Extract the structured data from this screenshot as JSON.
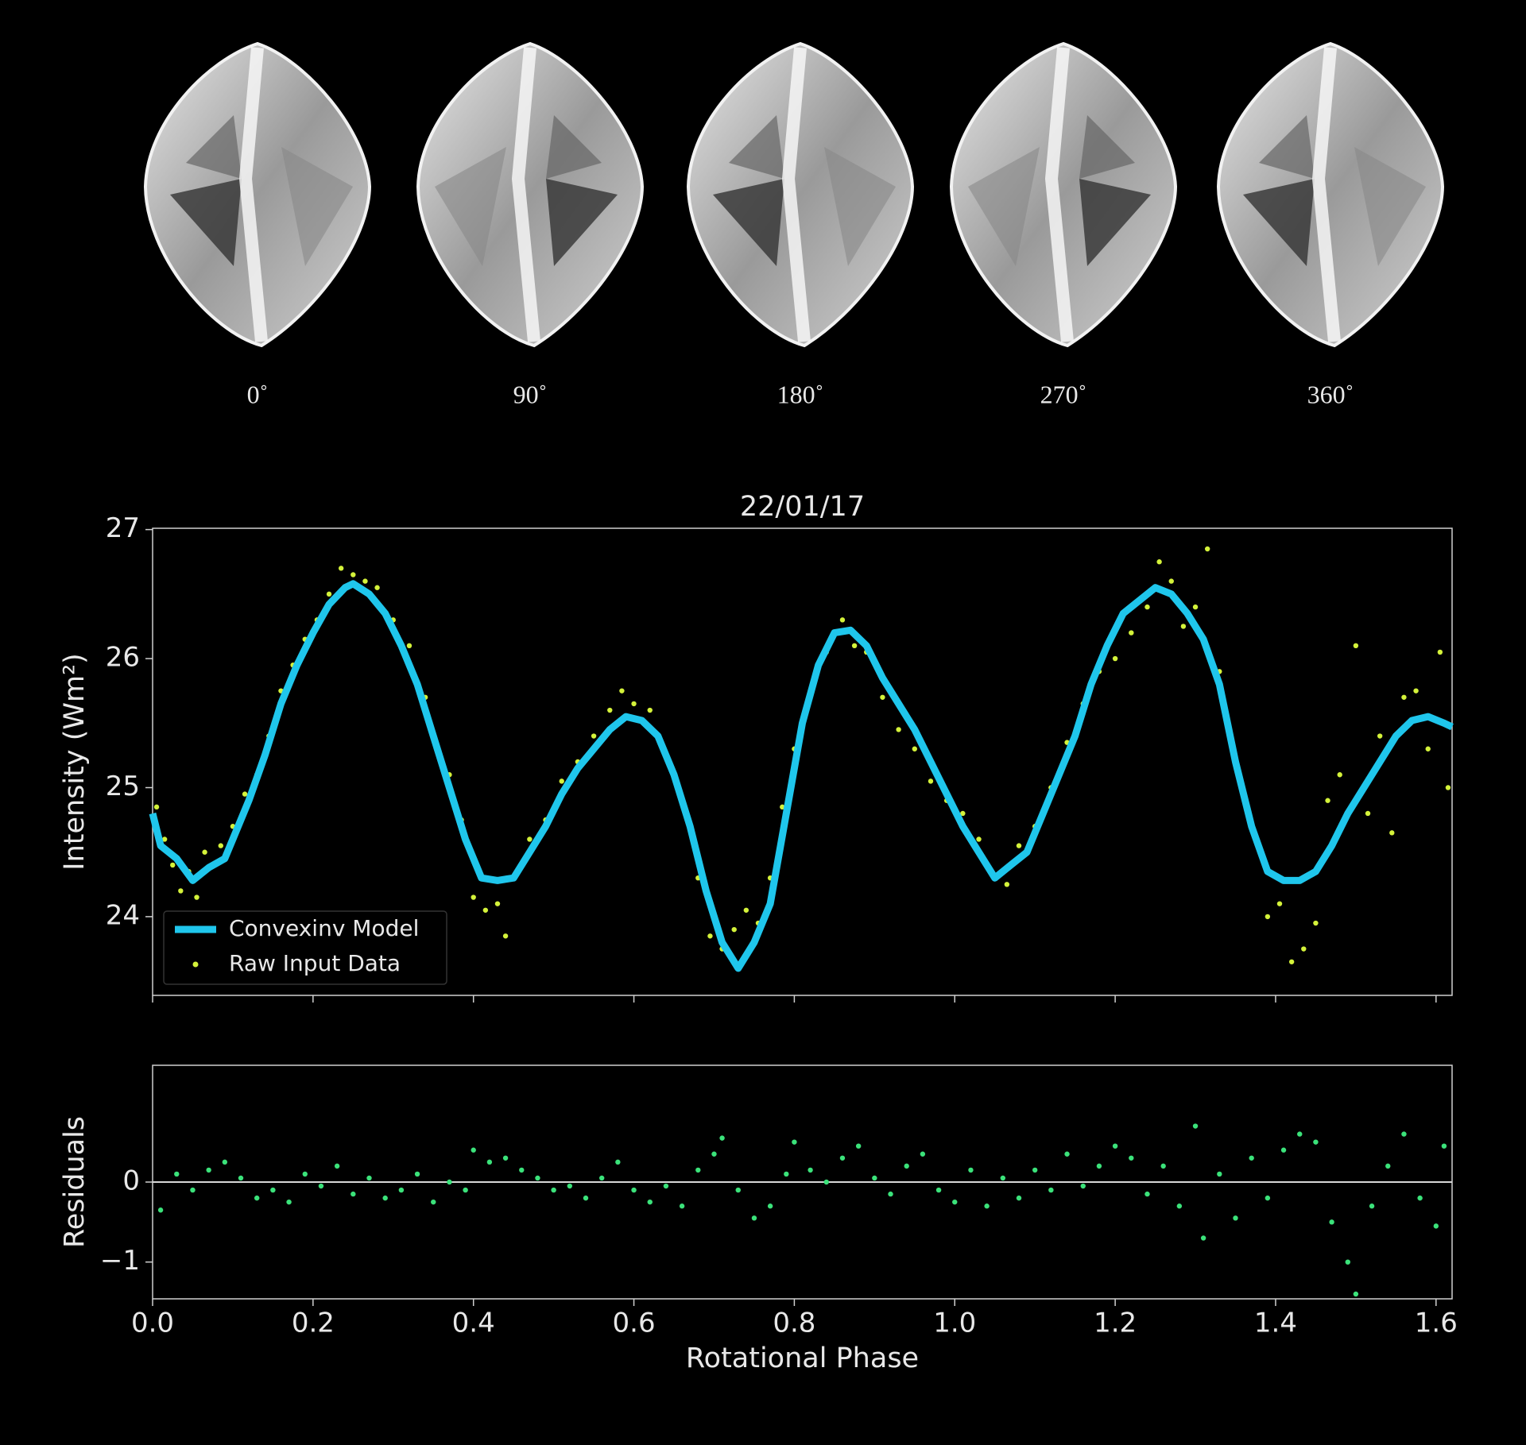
{
  "views": {
    "labels": [
      "0˚",
      "90˚",
      "180˚",
      "270˚",
      "360˚"
    ]
  },
  "chart_data": [
    {
      "type": "line",
      "title": "22/01/17",
      "ylabel": "Intensity (Wm²)",
      "xlim": [
        0,
        1.62
      ],
      "ylim": [
        23.39,
        27.01
      ],
      "yticks": [
        24,
        25,
        26,
        27
      ],
      "legend": "lower left",
      "series": [
        {
          "name": "Convexinv Model",
          "color": "#1fc6ec",
          "style": "line",
          "x": [
            0,
            0.01,
            0.03,
            0.05,
            0.07,
            0.09,
            0.1,
            0.12,
            0.14,
            0.16,
            0.18,
            0.2,
            0.22,
            0.24,
            0.25,
            0.27,
            0.29,
            0.31,
            0.33,
            0.35,
            0.37,
            0.39,
            0.41,
            0.43,
            0.45,
            0.47,
            0.49,
            0.51,
            0.53,
            0.55,
            0.57,
            0.59,
            0.61,
            0.63,
            0.65,
            0.67,
            0.69,
            0.71,
            0.73,
            0.75,
            0.77,
            0.79,
            0.81,
            0.83,
            0.85,
            0.87,
            0.89,
            0.91,
            0.93,
            0.95,
            0.97,
            0.99,
            1.01,
            1.03,
            1.05,
            1.07,
            1.09,
            1.11,
            1.13,
            1.15,
            1.17,
            1.19,
            1.21,
            1.23,
            1.25,
            1.27,
            1.29,
            1.31,
            1.33,
            1.35,
            1.37,
            1.39,
            1.41,
            1.43,
            1.45,
            1.47,
            1.49,
            1.51,
            1.53,
            1.55,
            1.57,
            1.59,
            1.61,
            1.62
          ],
          "values": [
            24.8,
            24.55,
            24.45,
            24.28,
            24.38,
            24.45,
            24.6,
            24.9,
            25.25,
            25.65,
            25.95,
            26.2,
            26.42,
            26.55,
            26.58,
            26.5,
            26.35,
            26.1,
            25.8,
            25.4,
            25.0,
            24.6,
            24.3,
            24.28,
            24.3,
            24.5,
            24.7,
            24.95,
            25.15,
            25.3,
            25.45,
            25.55,
            25.52,
            25.4,
            25.1,
            24.7,
            24.2,
            23.8,
            23.6,
            23.8,
            24.1,
            24.8,
            25.5,
            25.95,
            26.2,
            26.22,
            26.1,
            25.85,
            25.65,
            25.45,
            25.2,
            24.95,
            24.7,
            24.5,
            24.3,
            24.4,
            24.5,
            24.8,
            25.1,
            25.4,
            25.8,
            26.1,
            26.35,
            26.45,
            26.55,
            26.5,
            26.35,
            26.15,
            25.8,
            25.2,
            24.7,
            24.35,
            24.28,
            24.28,
            24.35,
            24.55,
            24.8,
            25.0,
            25.2,
            25.4,
            25.52,
            25.55,
            25.5,
            25.47
          ]
        },
        {
          "name": "Raw Input Data",
          "color": "#d4f23a",
          "style": "points",
          "x": [
            0.005,
            0.015,
            0.025,
            0.035,
            0.045,
            0.055,
            0.065,
            0.085,
            0.1,
            0.115,
            0.13,
            0.145,
            0.16,
            0.175,
            0.19,
            0.205,
            0.22,
            0.235,
            0.25,
            0.265,
            0.28,
            0.3,
            0.32,
            0.34,
            0.355,
            0.37,
            0.385,
            0.4,
            0.415,
            0.43,
            0.44,
            0.455,
            0.47,
            0.49,
            0.51,
            0.53,
            0.55,
            0.57,
            0.585,
            0.6,
            0.62,
            0.64,
            0.66,
            0.68,
            0.695,
            0.71,
            0.725,
            0.74,
            0.755,
            0.77,
            0.785,
            0.8,
            0.82,
            0.84,
            0.86,
            0.875,
            0.89,
            0.91,
            0.93,
            0.95,
            0.97,
            0.99,
            1.01,
            1.03,
            1.05,
            1.065,
            1.08,
            1.1,
            1.12,
            1.14,
            1.16,
            1.18,
            1.2,
            1.22,
            1.24,
            1.255,
            1.27,
            1.285,
            1.3,
            1.315,
            1.33,
            1.345,
            1.36,
            1.375,
            1.39,
            1.405,
            1.42,
            1.435,
            1.45,
            1.465,
            1.48,
            1.5,
            1.515,
            1.53,
            1.545,
            1.56,
            1.575,
            1.59,
            1.605,
            1.615
          ],
          "values": [
            24.85,
            24.6,
            24.4,
            24.2,
            24.35,
            24.15,
            24.5,
            24.55,
            24.7,
            24.95,
            25.1,
            25.4,
            25.75,
            25.95,
            26.15,
            26.3,
            26.5,
            26.7,
            26.65,
            26.6,
            26.55,
            26.3,
            26.1,
            25.7,
            25.3,
            25.1,
            24.75,
            24.15,
            24.05,
            24.1,
            23.85,
            24.35,
            24.6,
            24.75,
            25.05,
            25.2,
            25.4,
            25.6,
            25.75,
            25.65,
            25.6,
            25.25,
            24.9,
            24.3,
            23.85,
            23.75,
            23.9,
            24.05,
            23.95,
            24.3,
            24.85,
            25.3,
            25.75,
            26.05,
            26.3,
            26.1,
            26.05,
            25.7,
            25.45,
            25.3,
            25.05,
            24.9,
            24.8,
            24.6,
            24.3,
            24.25,
            24.55,
            24.7,
            25.0,
            25.35,
            25.65,
            25.9,
            26.0,
            26.2,
            26.4,
            26.75,
            26.6,
            26.25,
            26.4,
            26.85,
            25.9,
            25.35,
            24.95,
            24.6,
            24.0,
            24.1,
            23.65,
            23.75,
            23.95,
            24.9,
            25.1,
            26.1,
            24.8,
            25.4,
            24.65,
            25.7,
            25.75,
            25.3,
            26.05,
            25.0
          ]
        }
      ]
    },
    {
      "type": "scatter",
      "ylabel": "Residuals",
      "xlabel": "Rotational Phase",
      "color": "#3be27a",
      "xlim": [
        0,
        1.62
      ],
      "ylim": [
        -1.46,
        1.46
      ],
      "reference_line": 0,
      "xticks": [
        {
          "value": 0,
          "label": "0.0"
        },
        {
          "value": 0.2,
          "label": "0.2"
        },
        {
          "value": 0.4,
          "label": "0.4"
        },
        {
          "value": 0.6,
          "label": "0.6"
        },
        {
          "value": 0.8,
          "label": "0.8"
        },
        {
          "value": 1,
          "label": "1.0"
        },
        {
          "value": 1.2,
          "label": "1.2"
        },
        {
          "value": 1.4,
          "label": "1.4"
        },
        {
          "value": 1.6,
          "label": "1.6"
        }
      ],
      "yticks": [
        {
          "value": -1,
          "label": "−1"
        },
        0
      ],
      "x": [
        0.01,
        0.03,
        0.05,
        0.07,
        0.09,
        0.11,
        0.13,
        0.15,
        0.17,
        0.19,
        0.21,
        0.23,
        0.25,
        0.27,
        0.29,
        0.31,
        0.33,
        0.35,
        0.37,
        0.39,
        0.4,
        0.42,
        0.44,
        0.46,
        0.48,
        0.5,
        0.52,
        0.54,
        0.56,
        0.58,
        0.6,
        0.62,
        0.64,
        0.66,
        0.68,
        0.7,
        0.71,
        0.73,
        0.75,
        0.77,
        0.79,
        0.8,
        0.82,
        0.84,
        0.86,
        0.88,
        0.9,
        0.92,
        0.94,
        0.96,
        0.98,
        1.0,
        1.02,
        1.04,
        1.06,
        1.08,
        1.1,
        1.12,
        1.14,
        1.16,
        1.18,
        1.2,
        1.22,
        1.24,
        1.26,
        1.28,
        1.3,
        1.31,
        1.33,
        1.35,
        1.37,
        1.39,
        1.41,
        1.43,
        1.45,
        1.47,
        1.49,
        1.5,
        1.52,
        1.54,
        1.56,
        1.58,
        1.6,
        1.61
      ],
      "values": [
        -0.35,
        0.1,
        -0.1,
        0.15,
        0.25,
        0.05,
        -0.2,
        -0.1,
        -0.25,
        0.1,
        -0.05,
        0.2,
        -0.15,
        0.05,
        -0.2,
        -0.1,
        0.1,
        -0.25,
        0.0,
        -0.1,
        0.4,
        0.25,
        0.3,
        0.15,
        0.05,
        -0.1,
        -0.05,
        -0.2,
        0.05,
        0.25,
        -0.1,
        -0.25,
        -0.05,
        -0.3,
        0.15,
        0.35,
        0.55,
        -0.1,
        -0.45,
        -0.3,
        0.1,
        0.5,
        0.15,
        0.0,
        0.3,
        0.45,
        0.05,
        -0.15,
        0.2,
        0.35,
        -0.1,
        -0.25,
        0.15,
        -0.3,
        0.05,
        -0.2,
        0.15,
        -0.1,
        0.35,
        -0.05,
        0.2,
        0.45,
        0.3,
        -0.15,
        0.2,
        -0.3,
        0.7,
        -0.7,
        0.1,
        -0.45,
        0.3,
        -0.2,
        0.4,
        0.6,
        0.5,
        -0.5,
        -1.0,
        -1.4,
        -0.3,
        0.2,
        0.6,
        -0.2,
        -0.55,
        0.45
      ]
    }
  ]
}
